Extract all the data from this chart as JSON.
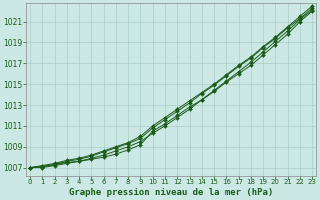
{
  "title": "Graphe pression niveau de la mer (hPa)",
  "background_color": "#cce8e4",
  "plot_bg_color": "#cce8e4",
  "line_color": "#1a5c1a",
  "grid_color": "#aaccc8",
  "x_labels": [
    "0",
    "1",
    "2",
    "3",
    "4",
    "5",
    "6",
    "7",
    "8",
    "9",
    "10",
    "11",
    "12",
    "13",
    "14",
    "15",
    "16",
    "17",
    "18",
    "19",
    "20",
    "21",
    "22",
    "23"
  ],
  "y_ticks": [
    1007,
    1009,
    1011,
    1013,
    1015,
    1017,
    1019,
    1021
  ],
  "ylim": [
    1006.2,
    1022.8
  ],
  "xlim": [
    -0.3,
    23.3
  ],
  "series": [
    [
      1007.0,
      1007.1,
      1007.3,
      1007.5,
      1007.6,
      1007.8,
      1008.0,
      1008.3,
      1008.7,
      1009.2,
      1010.5,
      1011.2,
      1012.0,
      1012.8,
      1013.5,
      1014.3,
      1015.2,
      1016.0,
      1016.8,
      1017.8,
      1018.8,
      1019.8,
      1021.0,
      1022.0
    ],
    [
      1007.0,
      1007.2,
      1007.4,
      1007.7,
      1007.9,
      1008.2,
      1008.6,
      1009.0,
      1009.4,
      1010.0,
      1011.0,
      1011.8,
      1012.6,
      1013.4,
      1014.2,
      1015.0,
      1015.9,
      1016.8,
      1017.6,
      1018.6,
      1019.5,
      1020.5,
      1021.5,
      1022.5
    ],
    [
      1007.0,
      1007.1,
      1007.3,
      1007.6,
      1007.8,
      1008.1,
      1008.5,
      1008.9,
      1009.3,
      1009.8,
      1010.8,
      1011.6,
      1012.4,
      1013.2,
      1014.1,
      1014.9,
      1015.8,
      1016.7,
      1017.5,
      1018.5,
      1019.4,
      1020.4,
      1021.3,
      1022.3
    ],
    [
      1007.0,
      1007.0,
      1007.2,
      1007.4,
      1007.6,
      1007.9,
      1008.2,
      1008.6,
      1009.0,
      1009.5,
      1010.3,
      1011.0,
      1011.8,
      1012.6,
      1013.5,
      1014.4,
      1015.3,
      1016.2,
      1017.1,
      1018.1,
      1019.1,
      1020.1,
      1021.2,
      1022.1
    ]
  ]
}
